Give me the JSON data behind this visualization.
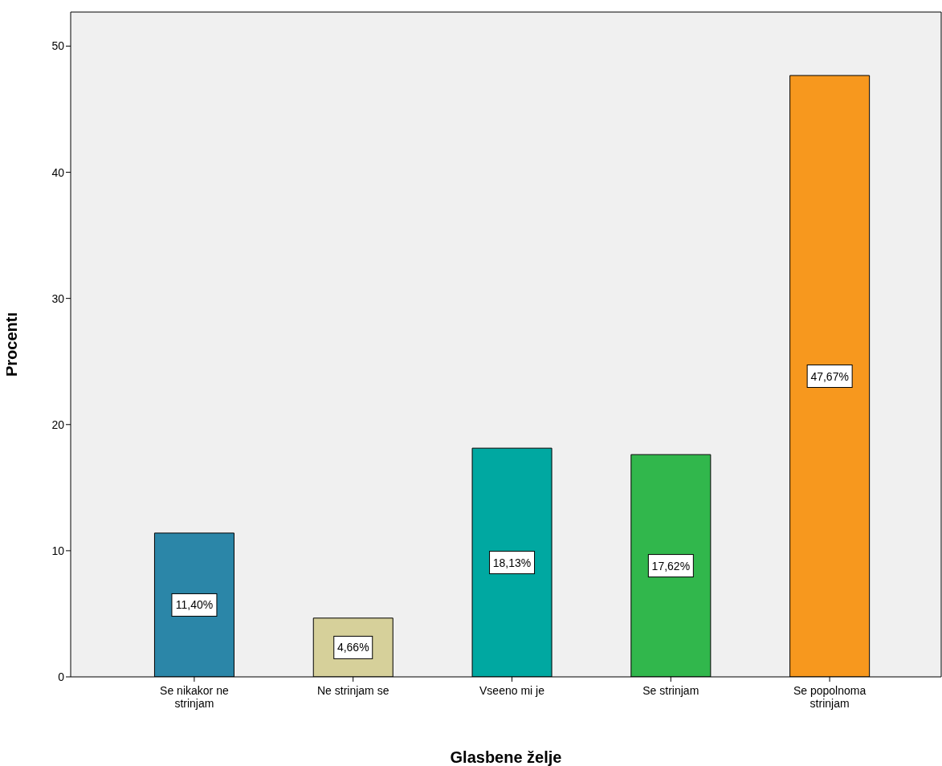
{
  "chart_data": {
    "type": "bar",
    "xlabel": "Glasbene želje",
    "ylabel": "Procenti",
    "categories": [
      "Se nikakor ne strinjam",
      "Ne strinjam se",
      "Vseeno mi je",
      "Se strinjam",
      "Se popolnoma strinjam"
    ],
    "values": [
      11.4,
      4.66,
      18.13,
      17.62,
      47.67
    ],
    "value_labels": [
      "11,40%",
      "4,66%",
      "18,13%",
      "17,62%",
      "47,67%"
    ],
    "colors": [
      "#2b86a8",
      "#d6d09a",
      "#00a8a1",
      "#31b74c",
      "#f7981e"
    ],
    "ylim": [
      0,
      52.7
    ],
    "yticks": [
      0,
      10,
      20,
      30,
      40,
      50
    ],
    "grid": false,
    "legend": false
  }
}
